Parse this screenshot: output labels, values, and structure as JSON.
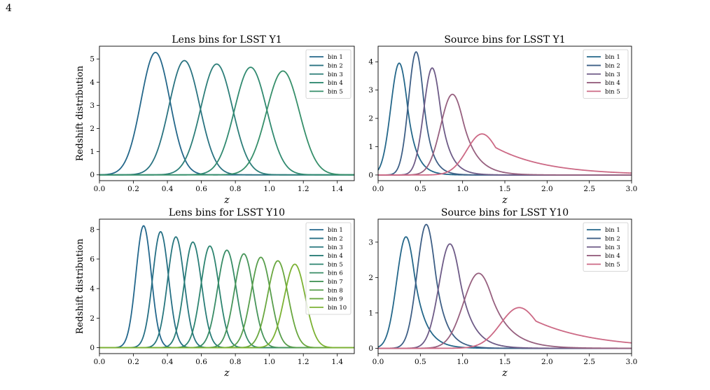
{
  "page": {
    "number": "4"
  },
  "chart_data": [
    {
      "type": "line",
      "title": "Lens bins for LSST Y1",
      "xlabel": "z",
      "ylabel": "Redshift distribution",
      "xlim": [
        0.0,
        1.5
      ],
      "ylim": [
        -0.25,
        5.55
      ],
      "xticks": [
        "0.0",
        "0.2",
        "0.4",
        "0.6",
        "0.8",
        "1.0",
        "1.2",
        "1.4"
      ],
      "yticks": [
        "0",
        "1",
        "2",
        "3",
        "4",
        "5"
      ],
      "legend": "top-right",
      "series": [
        {
          "name": "bin 1",
          "color": "#24678a",
          "peak_z": 0.33,
          "peak": 5.28,
          "width": 0.085
        },
        {
          "name": "bin 2",
          "color": "#2a7381",
          "peak_z": 0.5,
          "peak": 4.93,
          "width": 0.09
        },
        {
          "name": "bin 3",
          "color": "#2d7e79",
          "peak_z": 0.69,
          "peak": 4.78,
          "width": 0.093
        },
        {
          "name": "bin 4",
          "color": "#318a70",
          "peak_z": 0.89,
          "peak": 4.64,
          "width": 0.095
        },
        {
          "name": "bin 5",
          "color": "#368f6a",
          "peak_z": 1.08,
          "peak": 4.48,
          "width": 0.097
        }
      ]
    },
    {
      "type": "line",
      "title": "Source bins for LSST Y1",
      "xlabel": "z",
      "ylabel": "",
      "xlim": [
        0.0,
        3.0
      ],
      "ylim": [
        -0.2,
        4.55
      ],
      "xticks": [
        "0.0",
        "0.5",
        "1.0",
        "1.5",
        "2.0",
        "2.5",
        "3.0"
      ],
      "yticks": [
        "0",
        "1",
        "2",
        "3",
        "4"
      ],
      "legend": "top-right",
      "series": [
        {
          "name": "bin 1",
          "color": "#24678a",
          "peak_z": 0.25,
          "peak": 3.95,
          "left": 0.1,
          "right": 0.1
        },
        {
          "name": "bin 2",
          "color": "#3e5f86",
          "peak_z": 0.45,
          "peak": 4.35,
          "left": 0.09,
          "right": 0.09
        },
        {
          "name": "bin 3",
          "color": "#6e5b87",
          "peak_z": 0.64,
          "peak": 3.78,
          "left": 0.1,
          "right": 0.11
        },
        {
          "name": "bin 4",
          "color": "#97607f",
          "peak_z": 0.88,
          "peak": 2.85,
          "left": 0.14,
          "right": 0.16
        },
        {
          "name": "bin 5",
          "color": "#cc6985",
          "peak_z": 1.23,
          "peak": 1.45,
          "left": 0.18,
          "right": 0.6
        }
      ]
    },
    {
      "type": "line",
      "title": "Lens bins for LSST Y10",
      "xlabel": "z",
      "ylabel": "Redshift distribution",
      "xlim": [
        0.0,
        1.5
      ],
      "ylim": [
        -0.4,
        8.7
      ],
      "xticks": [
        "0.0",
        "0.2",
        "0.4",
        "0.6",
        "0.8",
        "1.0",
        "1.2",
        "1.4"
      ],
      "yticks": [
        "0",
        "2",
        "4",
        "6",
        "8"
      ],
      "legend": "top-right",
      "series": [
        {
          "name": "bin 1",
          "color": "#23678c",
          "peak_z": 0.26,
          "peak": 8.25,
          "width": 0.045
        },
        {
          "name": "bin 2",
          "color": "#256f84",
          "peak_z": 0.36,
          "peak": 7.85,
          "width": 0.047
        },
        {
          "name": "bin 3",
          "color": "#27767e",
          "peak_z": 0.45,
          "peak": 7.5,
          "width": 0.049
        },
        {
          "name": "bin 4",
          "color": "#297d77",
          "peak_z": 0.55,
          "peak": 7.15,
          "width": 0.051
        },
        {
          "name": "bin 5",
          "color": "#2d8470",
          "peak_z": 0.65,
          "peak": 6.88,
          "width": 0.053
        },
        {
          "name": "bin 6",
          "color": "#388c66",
          "peak_z": 0.75,
          "peak": 6.6,
          "width": 0.055
        },
        {
          "name": "bin 7",
          "color": "#47955a",
          "peak_z": 0.85,
          "peak": 6.35,
          "width": 0.056
        },
        {
          "name": "bin 8",
          "color": "#589e4c",
          "peak_z": 0.95,
          "peak": 6.12,
          "width": 0.058
        },
        {
          "name": "bin 9",
          "color": "#69a73f",
          "peak_z": 1.05,
          "peak": 5.88,
          "width": 0.06
        },
        {
          "name": "bin 10",
          "color": "#7cb233",
          "peak_z": 1.15,
          "peak": 5.65,
          "width": 0.062
        }
      ]
    },
    {
      "type": "line",
      "title": "Source bins for LSST Y10",
      "xlabel": "z",
      "ylabel": "",
      "xlim": [
        0.0,
        3.0
      ],
      "ylim": [
        -0.15,
        3.65
      ],
      "xticks": [
        "0.0",
        "0.5",
        "1.0",
        "1.5",
        "2.0",
        "2.5",
        "3.0"
      ],
      "yticks": [
        "0",
        "1",
        "2",
        "3"
      ],
      "legend": "top-right",
      "series": [
        {
          "name": "bin 1",
          "color": "#24678a",
          "peak_z": 0.33,
          "peak": 3.15,
          "left": 0.11,
          "right": 0.13
        },
        {
          "name": "bin 2",
          "color": "#3e5f86",
          "peak_z": 0.57,
          "peak": 3.5,
          "left": 0.11,
          "right": 0.12
        },
        {
          "name": "bin 3",
          "color": "#6e5b87",
          "peak_z": 0.85,
          "peak": 2.95,
          "left": 0.13,
          "right": 0.15
        },
        {
          "name": "bin 4",
          "color": "#97607f",
          "peak_z": 1.19,
          "peak": 2.12,
          "left": 0.18,
          "right": 0.22
        },
        {
          "name": "bin 5",
          "color": "#cc6985",
          "peak_z": 1.67,
          "peak": 1.15,
          "left": 0.22,
          "right": 0.7
        }
      ]
    }
  ]
}
